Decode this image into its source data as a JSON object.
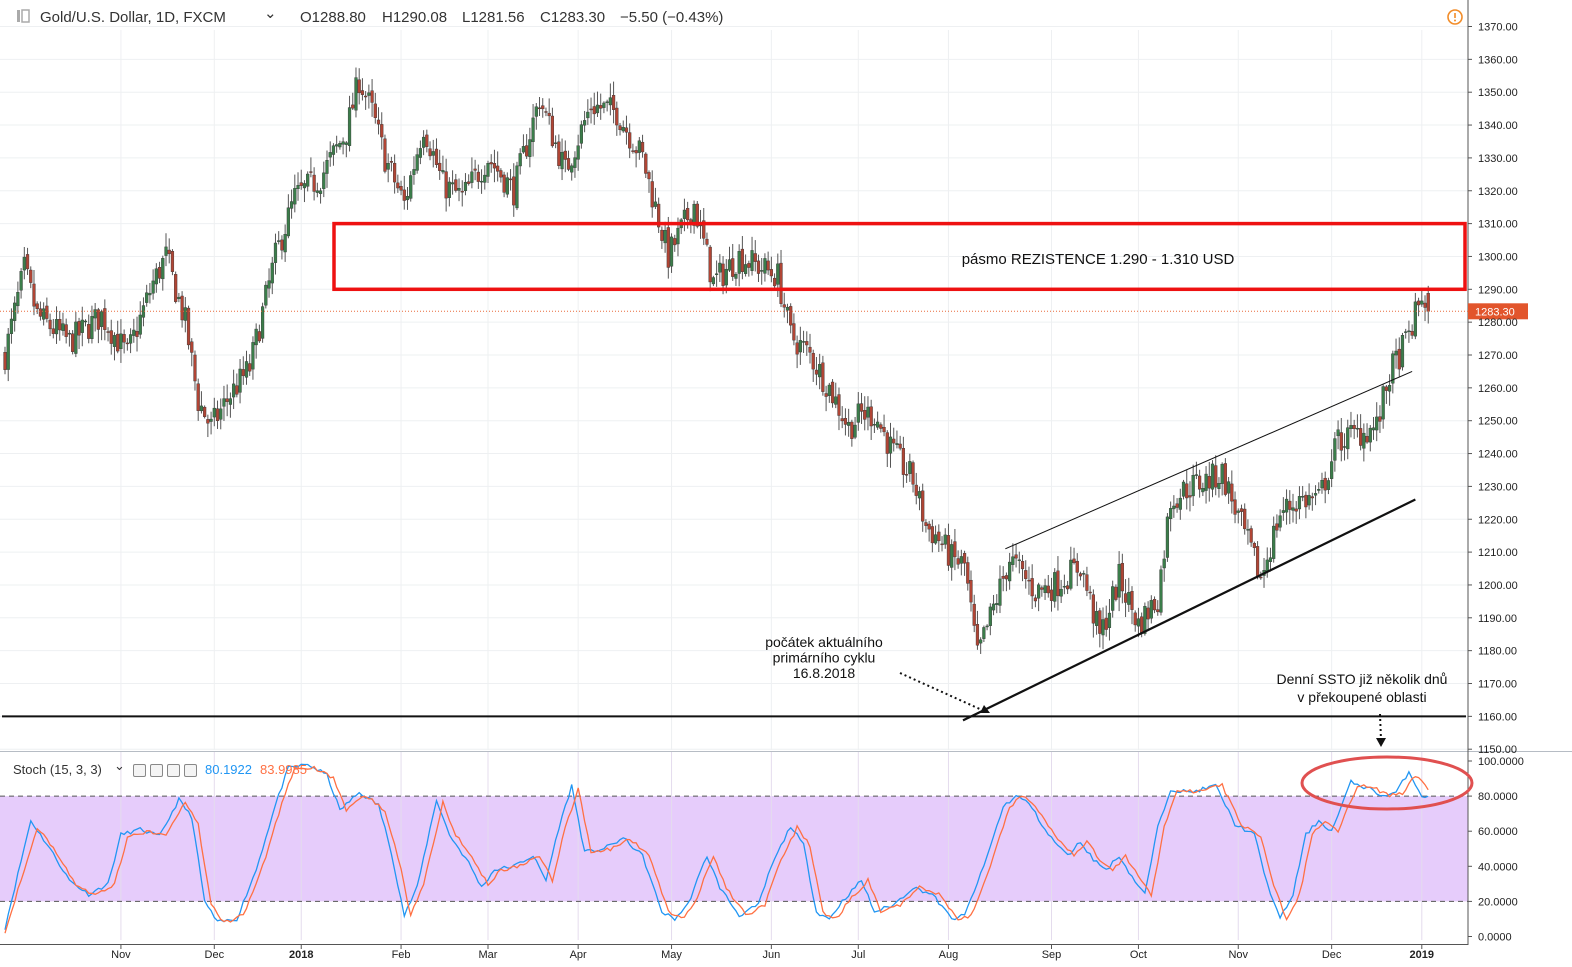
{
  "header": {
    "symbol": "Gold/U.S. Dollar, 1D, FXCM",
    "dropdown_glyph": "⌄",
    "open_label": "O",
    "open": "1288.80",
    "high_label": "H",
    "high": "1290.08",
    "low_label": "L",
    "low": "1281.56",
    "close_label": "C",
    "close": "1283.30",
    "change": "−5.50 (−0.43%)",
    "alert_icon": "clock-alert-icon"
  },
  "stoch": {
    "title": "Stoch (15, 3, 3)",
    "k_value": "80.1922",
    "d_value": "83.9985",
    "button_icons": [
      "eye-icon",
      "settings-icon",
      "plus-icon",
      "close-icon"
    ]
  },
  "colors": {
    "bull": "#3b7d4a",
    "bear": "#b04535",
    "wick": "#555555",
    "resistance_box": "#ee1111",
    "price_line": "#e86a3c",
    "stoch_k": "#2196f3",
    "stoch_d": "#ff7043",
    "stoch_band": "#e6ccfb",
    "oval": "#e05050"
  },
  "chart_data": [
    {
      "type": "candlestick",
      "title": "Gold/U.S. Dollar, 1D, FXCM",
      "y_axis_ticks": [
        "1370.00",
        "1360.00",
        "1350.00",
        "1340.00",
        "1330.00",
        "1320.00",
        "1310.00",
        "1300.00",
        "1290.00",
        "1280.00",
        "1270.00",
        "1260.00",
        "1250.00",
        "1240.00",
        "1230.00",
        "1220.00",
        "1210.00",
        "1200.00",
        "1190.00",
        "1180.00",
        "1170.00",
        "1160.00",
        "1150.00"
      ],
      "ylim": [
        1147,
        1372
      ],
      "x_axis_ticks": [
        {
          "label": "Nov",
          "t": 36,
          "bold": false
        },
        {
          "label": "Dec",
          "t": 65,
          "bold": false
        },
        {
          "label": "2018",
          "t": 92,
          "bold": true
        },
        {
          "label": "Feb",
          "t": 123,
          "bold": false
        },
        {
          "label": "Mar",
          "t": 150,
          "bold": false
        },
        {
          "label": "Apr",
          "t": 178,
          "bold": false
        },
        {
          "label": "May",
          "t": 207,
          "bold": false
        },
        {
          "label": "Jun",
          "t": 238,
          "bold": false
        },
        {
          "label": "Jul",
          "t": 265,
          "bold": false
        },
        {
          "label": "Aug",
          "t": 293,
          "bold": false
        },
        {
          "label": "Sep",
          "t": 325,
          "bold": false
        },
        {
          "label": "Oct",
          "t": 352,
          "bold": false
        },
        {
          "label": "Nov",
          "t": 383,
          "bold": false
        },
        {
          "label": "Dec",
          "t": 412,
          "bold": false
        },
        {
          "label": "2019",
          "t": 440,
          "bold": true
        }
      ],
      "price_path_anchors": [
        [
          0,
          1270
        ],
        [
          6,
          1296
        ],
        [
          10,
          1282
        ],
        [
          20,
          1274
        ],
        [
          30,
          1282
        ],
        [
          38,
          1270
        ],
        [
          46,
          1292
        ],
        [
          50,
          1300
        ],
        [
          56,
          1280
        ],
        [
          60,
          1256
        ],
        [
          64,
          1248
        ],
        [
          70,
          1258
        ],
        [
          76,
          1266
        ],
        [
          84,
          1300
        ],
        [
          90,
          1318
        ],
        [
          98,
          1324
        ],
        [
          106,
          1338
        ],
        [
          110,
          1354
        ],
        [
          114,
          1344
        ],
        [
          118,
          1330
        ],
        [
          124,
          1316
        ],
        [
          130,
          1340
        ],
        [
          136,
          1322
        ],
        [
          142,
          1318
        ],
        [
          150,
          1330
        ],
        [
          158,
          1320
        ],
        [
          166,
          1348
        ],
        [
          174,
          1326
        ],
        [
          182,
          1346
        ],
        [
          190,
          1344
        ],
        [
          198,
          1330
        ],
        [
          206,
          1300
        ],
        [
          214,
          1316
        ],
        [
          220,
          1292
        ],
        [
          228,
          1300
        ],
        [
          236,
          1296
        ],
        [
          240,
          1294
        ],
        [
          244,
          1276
        ],
        [
          250,
          1270
        ],
        [
          256,
          1260
        ],
        [
          262,
          1248
        ],
        [
          266,
          1252
        ],
        [
          270,
          1252
        ],
        [
          276,
          1240
        ],
        [
          282,
          1232
        ],
        [
          286,
          1218
        ],
        [
          290,
          1214
        ],
        [
          294,
          1208
        ],
        [
          298,
          1206
        ],
        [
          302,
          1178
        ],
        [
          306,
          1190
        ],
        [
          312,
          1208
        ],
        [
          320,
          1198
        ],
        [
          326,
          1200
        ],
        [
          334,
          1206
        ],
        [
          340,
          1184
        ],
        [
          346,
          1202
        ],
        [
          352,
          1188
        ],
        [
          358,
          1196
        ],
        [
          362,
          1226
        ],
        [
          368,
          1230
        ],
        [
          374,
          1232
        ],
        [
          378,
          1234
        ],
        [
          384,
          1218
        ],
        [
          390,
          1202
        ],
        [
          396,
          1222
        ],
        [
          402,
          1226
        ],
        [
          408,
          1226
        ],
        [
          414,
          1244
        ],
        [
          420,
          1246
        ],
        [
          426,
          1248
        ],
        [
          430,
          1264
        ],
        [
          436,
          1276
        ],
        [
          440,
          1288
        ],
        [
          442,
          1284
        ]
      ],
      "candle_count": 443,
      "last_price_label": "1283.30",
      "last_price": 1283.3,
      "resistance_zone": {
        "from": 1290,
        "to": 1310,
        "label": "pásmo REZISTENCE 1.290 - 1.310 USD"
      },
      "support_line_horizontal": 1160,
      "channel_lower": {
        "t1": 300,
        "p1": 1160,
        "t2": 438,
        "p2": 1226
      },
      "channel_upper": {
        "t1": 306,
        "p1": 1211,
        "t2": 437,
        "p2": 1265
      },
      "annotations": [
        {
          "lines": [
            "počátek aktuálního",
            "primárního cyklu",
            "16.8.2018"
          ]
        },
        {
          "lines": [
            "Denní SSTO již několik dnů",
            "v překoupené oblasti"
          ]
        }
      ]
    },
    {
      "type": "line",
      "title": "Stoch (15, 3, 3)",
      "y_axis_ticks": [
        "100.0000",
        "80.0000",
        "60.0000",
        "40.0000",
        "20.0000",
        "0.0000"
      ],
      "ylim": [
        0,
        100
      ],
      "levels": [
        80,
        20
      ],
      "series": [
        {
          "name": "%K",
          "value_last": 80.1922,
          "anchors": [
            [
              0,
              5
            ],
            [
              8,
              66
            ],
            [
              14,
              50
            ],
            [
              20,
              32
            ],
            [
              26,
              24
            ],
            [
              32,
              30
            ],
            [
              36,
              58
            ],
            [
              42,
              61
            ],
            [
              48,
              57
            ],
            [
              54,
              78
            ],
            [
              58,
              68
            ],
            [
              62,
              20
            ],
            [
              66,
              8
            ],
            [
              72,
              10
            ],
            [
              78,
              38
            ],
            [
              84,
              75
            ],
            [
              88,
              96
            ],
            [
              94,
              98
            ],
            [
              100,
              92
            ],
            [
              104,
              72
            ],
            [
              110,
              82
            ],
            [
              116,
              75
            ],
            [
              120,
              48
            ],
            [
              124,
              12
            ],
            [
              128,
              28
            ],
            [
              134,
              78
            ],
            [
              138,
              58
            ],
            [
              144,
              42
            ],
            [
              148,
              28
            ],
            [
              152,
              38
            ],
            [
              158,
              40
            ],
            [
              164,
              46
            ],
            [
              168,
              32
            ],
            [
              172,
              62
            ],
            [
              176,
              86
            ],
            [
              180,
              48
            ],
            [
              186,
              50
            ],
            [
              192,
              56
            ],
            [
              198,
              46
            ],
            [
              204,
              14
            ],
            [
              208,
              10
            ],
            [
              212,
              18
            ],
            [
              218,
              46
            ],
            [
              222,
              28
            ],
            [
              228,
              12
            ],
            [
              234,
              18
            ],
            [
              238,
              40
            ],
            [
              244,
              63
            ],
            [
              248,
              52
            ],
            [
              252,
              14
            ],
            [
              256,
              10
            ],
            [
              260,
              20
            ],
            [
              266,
              32
            ],
            [
              270,
              14
            ],
            [
              276,
              18
            ],
            [
              282,
              28
            ],
            [
              288,
              24
            ],
            [
              294,
              10
            ],
            [
              298,
              12
            ],
            [
              304,
              40
            ],
            [
              310,
              74
            ],
            [
              314,
              80
            ],
            [
              318,
              76
            ],
            [
              324,
              58
            ],
            [
              330,
              46
            ],
            [
              334,
              54
            ],
            [
              338,
              44
            ],
            [
              342,
              38
            ],
            [
              346,
              46
            ],
            [
              350,
              34
            ],
            [
              354,
              24
            ],
            [
              358,
              62
            ],
            [
              362,
              84
            ],
            [
              368,
              82
            ],
            [
              376,
              86
            ],
            [
              382,
              64
            ],
            [
              388,
              58
            ],
            [
              392,
              30
            ],
            [
              396,
              10
            ],
            [
              400,
              24
            ],
            [
              404,
              58
            ],
            [
              408,
              66
            ],
            [
              412,
              60
            ],
            [
              418,
              88
            ],
            [
              424,
              84
            ],
            [
              428,
              80
            ],
            [
              432,
              82
            ],
            [
              436,
              94
            ],
            [
              440,
              80
            ],
            [
              442,
              80
            ]
          ]
        },
        {
          "name": "%D",
          "value_last": 83.9985,
          "anchors": [
            [
              0,
              3
            ],
            [
              10,
              62
            ],
            [
              16,
              48
            ],
            [
              22,
              30
            ],
            [
              28,
              23
            ],
            [
              34,
              30
            ],
            [
              38,
              56
            ],
            [
              44,
              60
            ],
            [
              50,
              58
            ],
            [
              56,
              76
            ],
            [
              60,
              64
            ],
            [
              64,
              18
            ],
            [
              68,
              8
            ],
            [
              74,
              12
            ],
            [
              80,
              40
            ],
            [
              86,
              76
            ],
            [
              90,
              96
            ],
            [
              96,
              96
            ],
            [
              102,
              90
            ],
            [
              106,
              72
            ],
            [
              112,
              80
            ],
            [
              118,
              72
            ],
            [
              122,
              46
            ],
            [
              126,
              12
            ],
            [
              130,
              30
            ],
            [
              136,
              76
            ],
            [
              140,
              58
            ],
            [
              146,
              42
            ],
            [
              150,
              30
            ],
            [
              154,
              38
            ],
            [
              160,
              40
            ],
            [
              166,
              46
            ],
            [
              170,
              32
            ],
            [
              174,
              62
            ],
            [
              178,
              84
            ],
            [
              182,
              48
            ],
            [
              188,
              50
            ],
            [
              194,
              56
            ],
            [
              200,
              46
            ],
            [
              206,
              14
            ],
            [
              210,
              10
            ],
            [
              214,
              18
            ],
            [
              220,
              46
            ],
            [
              224,
              28
            ],
            [
              230,
              12
            ],
            [
              236,
              18
            ],
            [
              240,
              40
            ],
            [
              246,
              62
            ],
            [
              250,
              52
            ],
            [
              254,
              14
            ],
            [
              258,
              10
            ],
            [
              262,
              20
            ],
            [
              268,
              32
            ],
            [
              272,
              14
            ],
            [
              278,
              18
            ],
            [
              284,
              28
            ],
            [
              290,
              24
            ],
            [
              296,
              10
            ],
            [
              300,
              12
            ],
            [
              306,
              40
            ],
            [
              312,
              74
            ],
            [
              316,
              80
            ],
            [
              320,
              74
            ],
            [
              326,
              58
            ],
            [
              332,
              46
            ],
            [
              336,
              54
            ],
            [
              340,
              44
            ],
            [
              344,
              38
            ],
            [
              348,
              46
            ],
            [
              352,
              34
            ],
            [
              356,
              24
            ],
            [
              360,
              62
            ],
            [
              364,
              84
            ],
            [
              370,
              82
            ],
            [
              378,
              86
            ],
            [
              384,
              64
            ],
            [
              390,
              56
            ],
            [
              394,
              30
            ],
            [
              398,
              10
            ],
            [
              402,
              24
            ],
            [
              406,
              58
            ],
            [
              410,
              66
            ],
            [
              414,
              60
            ],
            [
              420,
              86
            ],
            [
              426,
              84
            ],
            [
              430,
              80
            ],
            [
              434,
              82
            ],
            [
              438,
              92
            ],
            [
              442,
              84
            ]
          ]
        }
      ]
    }
  ]
}
